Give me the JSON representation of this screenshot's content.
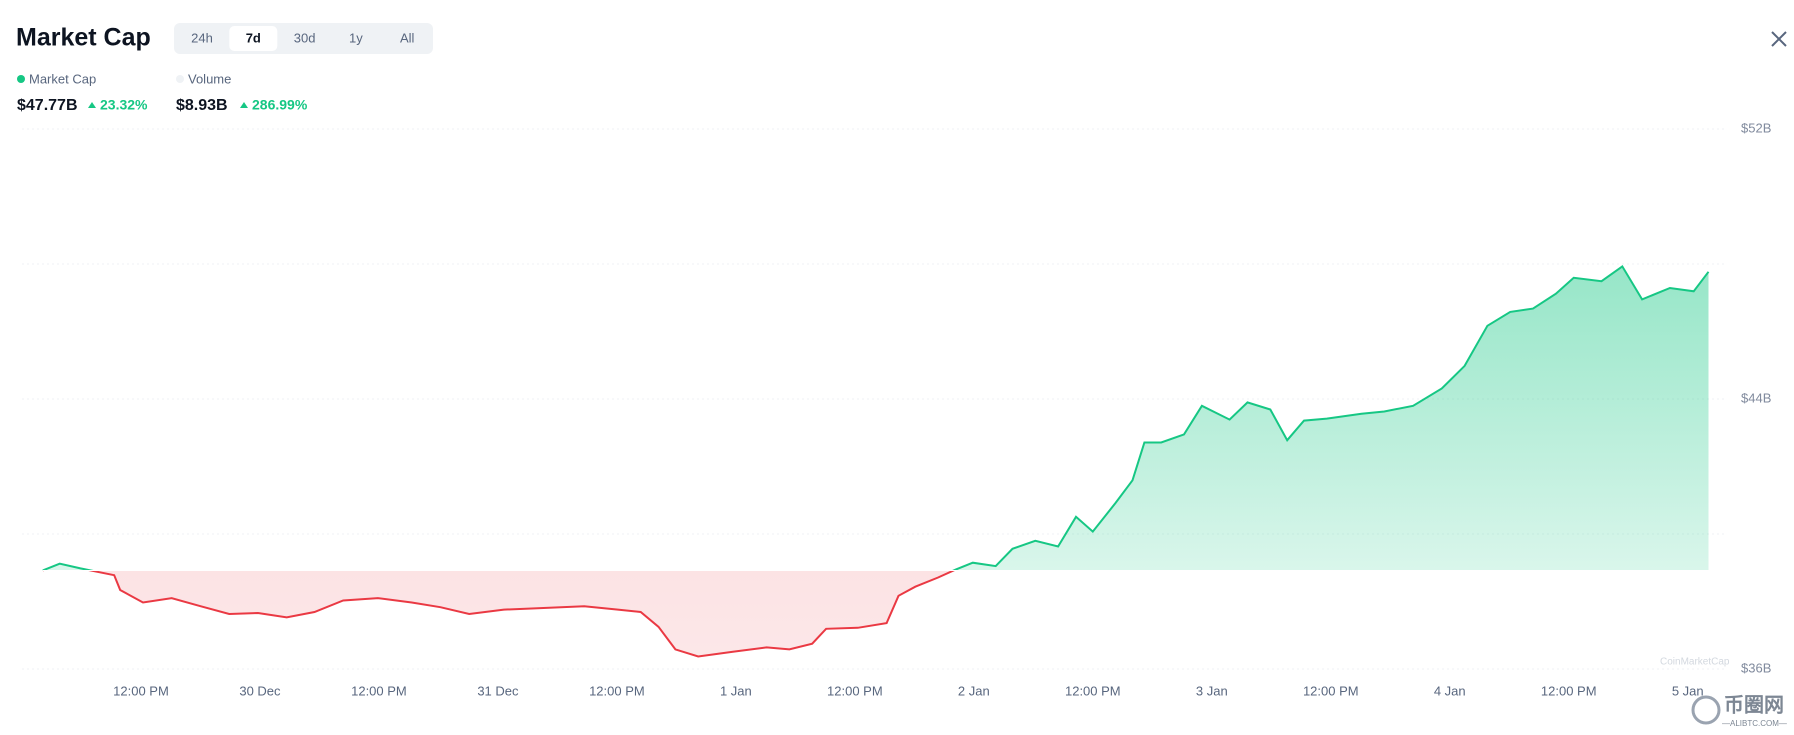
{
  "header": {
    "title": "Market Cap",
    "tabs": [
      "24h",
      "7d",
      "30d",
      "1y",
      "All"
    ],
    "active_tab": 1,
    "metrics": [
      {
        "name": "Market Cap",
        "value": "$47.77B",
        "change": "23.32%"
      },
      {
        "name": "Volume",
        "value": "$8.93B",
        "change": "286.99%"
      }
    ],
    "watermark": "CoinMarketCap",
    "logo": "币圈网",
    "logo_sub": "—ALIBTC.COM—"
  },
  "chart_data": {
    "type": "line",
    "x": [
      2.1,
      3.8,
      5.9,
      9.3,
      9.9,
      12.2,
      15.1,
      18.0,
      20.9,
      23.8,
      26.7,
      29.5,
      32.4,
      35.9,
      39.3,
      42.2,
      45.1,
      48.6,
      52.0,
      56.7,
      60.1,
      62.4,
      64.2,
      65.9,
      68.2,
      71.7,
      75.1,
      77.4,
      79.7,
      81.1,
      84.3,
      87.2,
      88.4,
      90.1,
      92.4,
      94.2,
      95.9,
      98.2,
      99.9,
      102.2,
      104.5,
      106.3,
      108.0,
      110.3,
      112.0,
      113.2,
      114.9,
      117.2,
      119.0,
      121.8,
      123.6,
      125.9,
      127.6,
      129.3,
      131.6,
      135.1,
      137.4,
      140.3,
      143.2,
      145.5,
      147.8,
      150.1,
      152.4,
      154.7,
      156.5,
      159.3,
      161.4,
      163.4,
      166.2,
      168.6,
      170.1
    ],
    "series": [
      {
        "name": "Market Cap",
        "color": "#16c784",
        "down_color": "#ea3943",
        "values": [
          38.92,
          39.12,
          38.98,
          38.78,
          38.34,
          37.97,
          38.1,
          37.86,
          37.63,
          37.66,
          37.53,
          37.69,
          38.03,
          38.1,
          37.97,
          37.83,
          37.63,
          37.76,
          37.8,
          37.86,
          37.76,
          37.69,
          37.25,
          36.58,
          36.37,
          36.51,
          36.64,
          36.58,
          36.75,
          37.19,
          37.22,
          37.36,
          38.17,
          38.44,
          38.71,
          38.95,
          39.15,
          39.05,
          39.56,
          39.8,
          39.63,
          40.51,
          40.07,
          40.92,
          41.59,
          42.71,
          42.71,
          42.95,
          43.8,
          43.39,
          43.9,
          43.69,
          42.78,
          43.36,
          43.42,
          43.56,
          43.63,
          43.8,
          44.31,
          44.98,
          46.17,
          46.58,
          46.68,
          47.12,
          47.59,
          47.49,
          47.93,
          46.95,
          47.29,
          47.19,
          47.77
        ]
      }
    ],
    "xlim": [
      0,
      171
    ],
    "xticks": [
      {
        "value": 12,
        "label": "12:00 PM"
      },
      {
        "value": 24,
        "label": "30 Dec"
      },
      {
        "value": 36,
        "label": "12:00 PM"
      },
      {
        "value": 48,
        "label": "31 Dec"
      },
      {
        "value": 60,
        "label": "12:00 PM"
      },
      {
        "value": 72,
        "label": "1 Jan"
      },
      {
        "value": 84,
        "label": "12:00 PM"
      },
      {
        "value": 96,
        "label": "2 Jan"
      },
      {
        "value": 108,
        "label": "12:00 PM"
      },
      {
        "value": 120,
        "label": "3 Jan"
      },
      {
        "value": 132,
        "label": "12:00 PM"
      },
      {
        "value": 144,
        "label": "4 Jan"
      },
      {
        "value": 156,
        "label": "12:00 PM"
      },
      {
        "value": 168,
        "label": "5 Jan"
      }
    ],
    "ylim": [
      36,
      52
    ],
    "yticks": [
      {
        "value": 36,
        "label": "$36B"
      },
      {
        "value": 40,
        "label": null
      },
      {
        "value": 44,
        "label": "$44B"
      },
      {
        "value": 48,
        "label": null
      },
      {
        "value": 52,
        "label": "$52B"
      }
    ],
    "grid": true
  }
}
